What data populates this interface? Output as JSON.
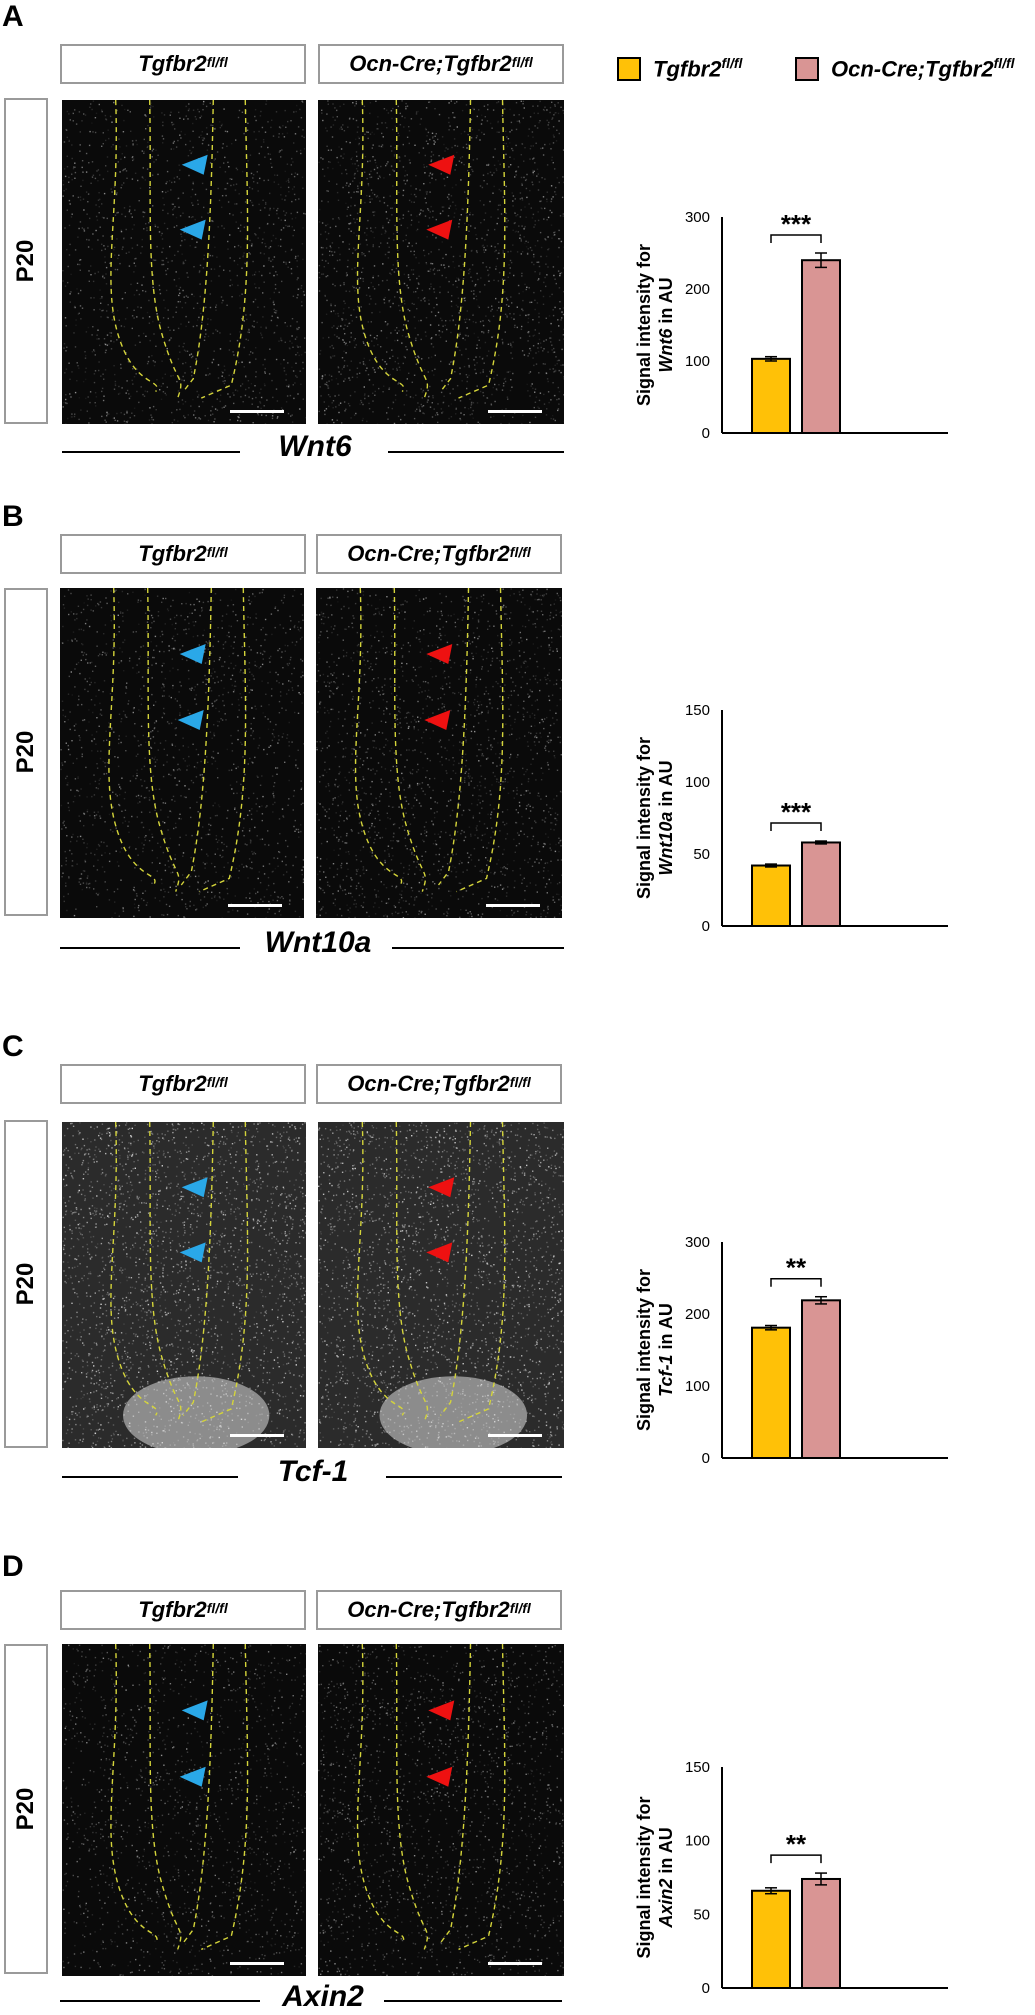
{
  "legend": {
    "control": {
      "name": "Tgfbr2",
      "sup": "fl/fl",
      "color": "#FFC107"
    },
    "mutant": {
      "name": "Ocn-Cre;Tgfbr2",
      "sup": "fl/fl",
      "color": "#D99594"
    }
  },
  "panels": [
    {
      "letter": "A",
      "age": "P20",
      "gene": "Wnt6",
      "header_left": "Tgfbr2",
      "header_right": "Ocn-Cre;Tgfbr2",
      "header_sup": "fl/fl",
      "style": "dark"
    },
    {
      "letter": "B",
      "age": "P20",
      "gene": "Wnt10a",
      "header_left": "Tgfbr2",
      "header_right": "Ocn-Cre;Tgfbr2",
      "header_sup": "fl/fl",
      "style": "dark"
    },
    {
      "letter": "C",
      "age": "P20",
      "gene": "Tcf-1",
      "header_left": "Tgfbr2",
      "header_right": "Ocn-Cre;Tgfbr2",
      "header_sup": "fl/fl",
      "style": "bright"
    },
    {
      "letter": "D",
      "age": "P20",
      "gene": "Axin2",
      "header_left": "Tgfbr2",
      "header_right": "Ocn-Cre;Tgfbr2",
      "header_sup": "fl/fl",
      "style": "dark"
    }
  ],
  "chart_data": [
    {
      "type": "bar",
      "categories": [
        "Tgfbr2 fl/fl",
        "Ocn-Cre;Tgfbr2 fl/fl"
      ],
      "values": [
        103,
        240
      ],
      "errors": [
        3,
        10
      ],
      "ylabel_prefix": "Signal intensity for",
      "ylabel_gene": "Wnt6",
      "ylabel_suffix": "in AU",
      "ylim": [
        0,
        300
      ],
      "yticks": [
        0,
        100,
        200,
        300
      ],
      "significance": "***"
    },
    {
      "type": "bar",
      "categories": [
        "Tgfbr2 fl/fl",
        "Ocn-Cre;Tgfbr2 fl/fl"
      ],
      "values": [
        42,
        58
      ],
      "errors": [
        1,
        1
      ],
      "ylabel_prefix": "Signal intensity for",
      "ylabel_gene": "Wnt10a",
      "ylabel_suffix": "in AU",
      "ylim": [
        0,
        150
      ],
      "yticks": [
        0,
        50,
        100,
        150
      ],
      "significance": "***"
    },
    {
      "type": "bar",
      "categories": [
        "Tgfbr2 fl/fl",
        "Ocn-Cre;Tgfbr2 fl/fl"
      ],
      "values": [
        181,
        219
      ],
      "errors": [
        3,
        5
      ],
      "ylabel_prefix": "Signal intensity for",
      "ylabel_gene": "Tcf-1",
      "ylabel_suffix": "in AU",
      "ylim": [
        0,
        300
      ],
      "yticks": [
        0,
        100,
        200,
        300
      ],
      "significance": "**"
    },
    {
      "type": "bar",
      "categories": [
        "Tgfbr2 fl/fl",
        "Ocn-Cre;Tgfbr2 fl/fl"
      ],
      "values": [
        66,
        74
      ],
      "errors": [
        2,
        4
      ],
      "ylabel_prefix": "Signal intensity for",
      "ylabel_gene": "Axin2",
      "ylabel_suffix": "in AU",
      "ylim": [
        0,
        150
      ],
      "yticks": [
        0,
        50,
        100,
        150
      ],
      "significance": "**"
    }
  ]
}
